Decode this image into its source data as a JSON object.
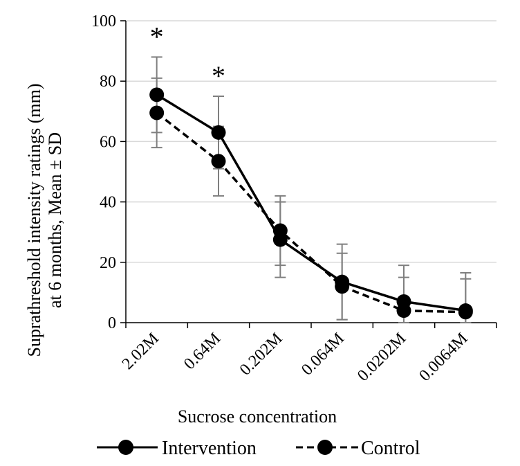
{
  "chart_data": {
    "type": "line",
    "title": "",
    "xlabel": "Sucrose concentration",
    "ylabel_line1": "Suprathreshold intensity ratings (mm)",
    "ylabel_line2": "at 6 months, Mean ± SD",
    "categories": [
      "2.02M",
      "0.64M",
      "0.202M",
      "0.064M",
      "0.0202M",
      "0.0064M"
    ],
    "ylim": [
      0,
      100
    ],
    "yticks": [
      0,
      20,
      40,
      60,
      80,
      100
    ],
    "grid": true,
    "legend_position": "bottom",
    "significance_markers": [
      {
        "category": "2.02M",
        "label": "*"
      },
      {
        "category": "0.64M",
        "label": "*"
      }
    ],
    "series": [
      {
        "name": "Intervention",
        "line_style": "solid",
        "values": [
          75.5,
          63,
          27.5,
          13.5,
          7,
          4
        ],
        "sd": [
          12.5,
          12,
          12.5,
          12.5,
          12,
          12.5
        ]
      },
      {
        "name": "Control",
        "line_style": "dashed",
        "values": [
          69.5,
          53.5,
          30.5,
          12,
          4,
          3.5
        ],
        "sd": [
          11.5,
          11.5,
          11.5,
          11,
          11,
          11
        ]
      }
    ],
    "colors": {
      "line": "#000000",
      "error_bar": "#7f7f7f",
      "grid": "#d9d9d9",
      "axis": "#000000"
    }
  }
}
